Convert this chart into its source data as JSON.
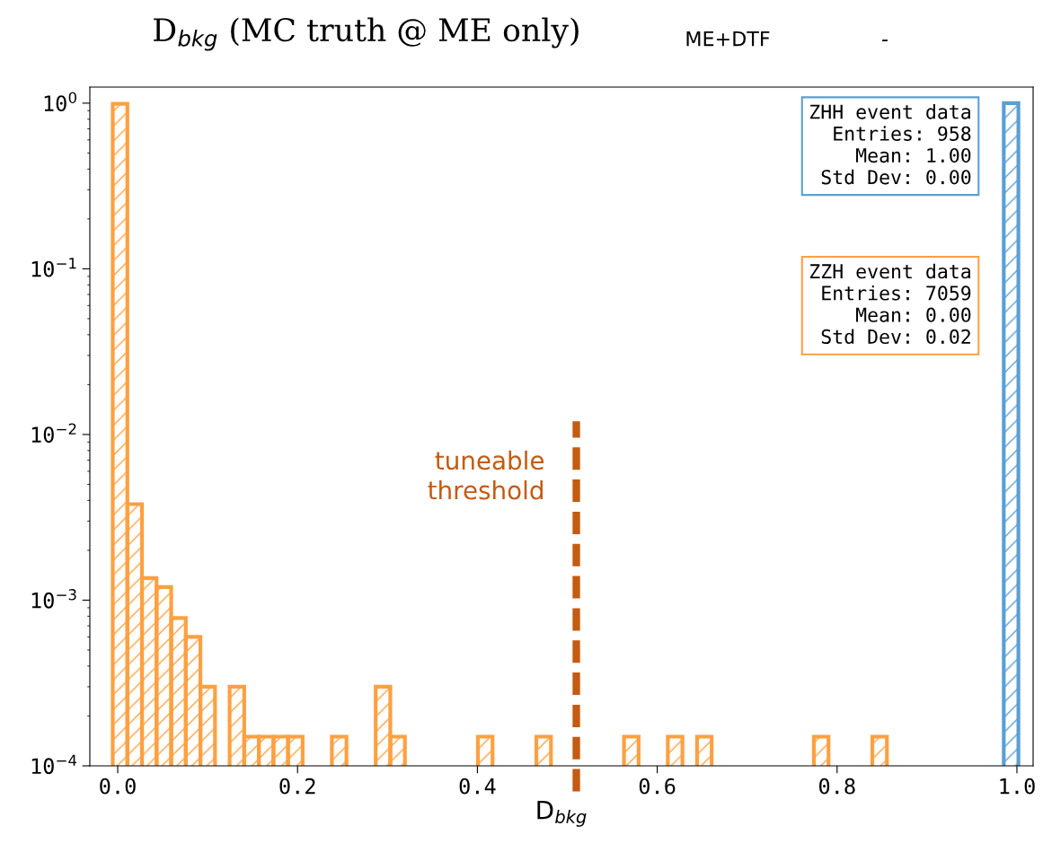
{
  "chart_data": {
    "type": "histogram",
    "title": "D$_{bkg}$ (MC truth @ ME only)",
    "xlabel": "D$_{bkg}$",
    "bins": [
      -0.0055,
      0.01074,
      0.02699,
      0.04323,
      0.05948,
      0.07572,
      0.09196,
      0.10821,
      0.12445,
      0.1407,
      0.15694,
      0.17318,
      0.18943,
      0.20567,
      0.22192,
      0.23816,
      0.2544,
      0.27065,
      0.28689,
      0.30314,
      0.31938,
      0.33562,
      0.35187,
      0.36811,
      0.38436,
      0.4006,
      0.41684,
      0.43309,
      0.44933,
      0.46558,
      0.48182,
      0.49806,
      0.51431,
      0.53055,
      0.5468,
      0.56304,
      0.57928,
      0.59553,
      0.61177,
      0.62802,
      0.64426,
      0.6605,
      0.67675,
      0.69299,
      0.70924,
      0.72548,
      0.74172,
      0.75797,
      0.77421,
      0.79046,
      0.8067,
      0.82294,
      0.83919,
      0.85543,
      0.87168,
      0.88792,
      0.90416,
      0.92041,
      0.93665,
      0.9529,
      0.96914,
      0.98538,
      1.00163
    ],
    "series": [
      {
        "color": "#5a9fd4",
        "values": [
          null,
          null,
          null,
          null,
          null,
          null,
          null,
          null,
          null,
          null,
          null,
          null,
          null,
          null,
          null,
          null,
          null,
          null,
          null,
          null,
          null,
          null,
          null,
          null,
          null,
          null,
          null,
          null,
          null,
          null,
          null,
          null,
          null,
          null,
          null,
          null,
          null,
          null,
          null,
          null,
          null,
          null,
          null,
          null,
          null,
          null,
          null,
          null,
          null,
          null,
          null,
          null,
          null,
          null,
          null,
          null,
          null,
          null,
          null,
          null,
          null,
          1.0
        ]
      },
      {
        "color": "#ffa040",
        "values": [
          0.99,
          0.0038,
          0.00136,
          0.0012,
          0.00078,
          0.0006,
          0.0003,
          null,
          0.0003,
          0.00015,
          0.00015,
          0.00015,
          0.00015,
          null,
          null,
          0.00015,
          null,
          null,
          0.0003,
          0.00015,
          null,
          null,
          null,
          null,
          null,
          0.00015,
          null,
          null,
          null,
          0.00015,
          null,
          null,
          null,
          null,
          null,
          0.00015,
          null,
          null,
          0.00015,
          null,
          0.00015,
          null,
          null,
          null,
          null,
          null,
          null,
          null,
          0.00015,
          null,
          null,
          null,
          0.00015,
          null,
          null,
          null,
          null,
          null,
          null,
          null,
          null,
          null
        ]
      }
    ],
    "log": "y",
    "xlim": [
      -0.031,
      1.018
    ],
    "ylim": [
      0.0001,
      1.25
    ],
    "xticks": [
      {
        "value": 0,
        "label": "0.0"
      },
      {
        "value": 0.2,
        "label": "0.2"
      },
      {
        "value": 0.4,
        "label": "0.4"
      },
      {
        "value": 0.6,
        "label": "0.6"
      },
      {
        "value": 0.8,
        "label": "0.8"
      },
      {
        "value": 1,
        "label": "1.0"
      }
    ],
    "yticks": [
      {
        "value": 0.0001,
        "label": "10$^{−4}$"
      },
      {
        "value": 0.001,
        "label": "10$^{−3}$"
      },
      {
        "value": 0.01,
        "label": "10$^{−2}$"
      },
      {
        "value": 0.1,
        "label": "10$^{−1}$"
      },
      {
        "value": 1,
        "label": "10$^{0}$"
      }
    ],
    "ref_lines": [
      {
        "axis": "x",
        "value": 0.51,
        "label": "tuneable\nthreshold",
        "color": "#c55a11",
        "line_style": "dashed"
      }
    ],
    "annotations": [
      "ZHH event data\nEntries: 958\nMean: 1.00\nStd Dev: 0.00",
      "ZZH event data\nEntries: 7059\nMean: 0.00\nStd Dev: 0.02",
      "ME+DTF",
      "-"
    ],
    "grid": false,
    "legend": false
  }
}
